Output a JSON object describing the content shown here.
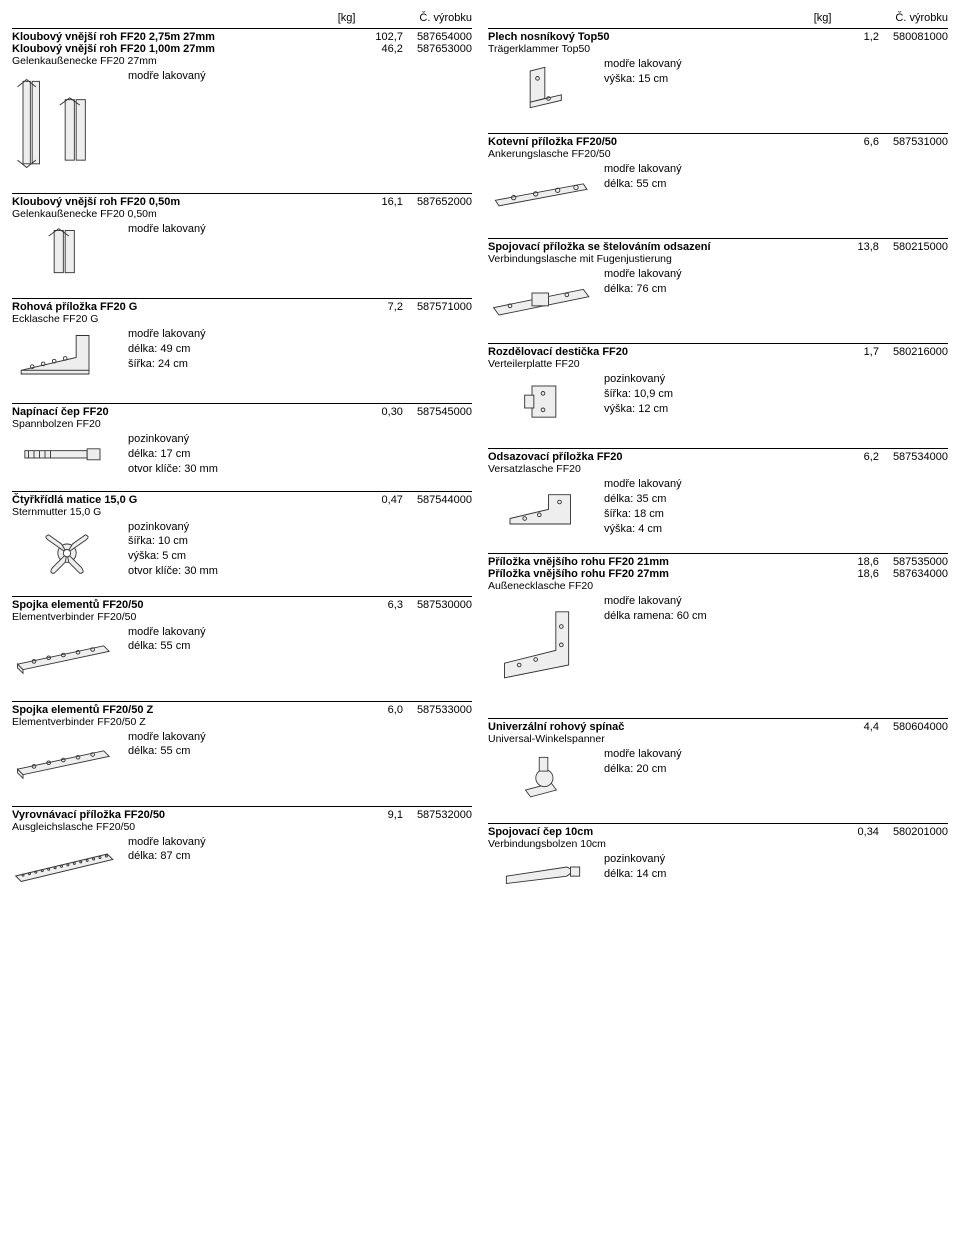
{
  "header": {
    "kg_label": "[kg]",
    "code_label": "Č. výrobku"
  },
  "left": [
    {
      "titles": [
        {
          "name": "Kloubový vnější roh FF20 2,75m 27mm",
          "kg": "102,7",
          "code": "587654000"
        },
        {
          "name": "Kloubový vnější roh FF20 1,00m 27mm",
          "kg": "46,2",
          "code": "587653000"
        }
      ],
      "subname": "Gelenkaußenecke FF20 27mm",
      "thumb": "corners",
      "thumb_tall": true,
      "specs": [
        "modře lakovaný"
      ]
    },
    {
      "titles": [
        {
          "name": "Kloubový vnější roh FF20 0,50m",
          "kg": "16,1",
          "code": "587652000"
        }
      ],
      "subname": "Gelenkaußenecke FF20 0,50m",
      "thumb": "corner-small",
      "specs": [
        "modře lakovaný"
      ]
    },
    {
      "titles": [
        {
          "name": "Rohová příložka FF20 G",
          "kg": "7,2",
          "code": "587571000"
        }
      ],
      "subname": "Ecklasche FF20 G",
      "thumb": "l-plate",
      "specs": [
        "modře lakovaný",
        "délka: 49 cm",
        "šířka: 24 cm"
      ]
    },
    {
      "titles": [
        {
          "name": "Napínací čep FF20",
          "kg": "0,30",
          "code": "587545000"
        }
      ],
      "subname": "Spannbolzen FF20",
      "thumb": "bolt",
      "thumb_short": true,
      "specs": [
        "pozinkovaný",
        "délka: 17 cm",
        "otvor klíče: 30 mm"
      ]
    },
    {
      "titles": [
        {
          "name": "Čtyřkřídlá matice 15,0 G",
          "kg": "0,47",
          "code": "587544000"
        }
      ],
      "subname": "Sternmutter 15,0 G",
      "thumb": "wingnut",
      "specs": [
        "pozinkovaný",
        "šířka: 10 cm",
        "výška: 5 cm",
        "otvor klíče: 30 mm"
      ]
    },
    {
      "titles": [
        {
          "name": "Spojka elementů FF20/50",
          "kg": "6,3",
          "code": "587530000"
        }
      ],
      "subname": "Elementverbinder FF20/50",
      "thumb": "long-plate",
      "specs": [
        "modře lakovaný",
        "délka: 55 cm"
      ]
    },
    {
      "titles": [
        {
          "name": "Spojka elementů FF20/50 Z",
          "kg": "6,0",
          "code": "587533000"
        }
      ],
      "subname": "Elementverbinder FF20/50 Z",
      "thumb": "long-plate",
      "specs": [
        "modře lakovaný",
        "délka: 55 cm"
      ]
    },
    {
      "titles": [
        {
          "name": "Vyrovnávací příložka FF20/50",
          "kg": "9,1",
          "code": "587532000"
        }
      ],
      "subname": "Ausgleichslasche FF20/50",
      "thumb": "long-plate-dots",
      "specs": [
        "modře lakovaný",
        "délka: 87 cm"
      ]
    }
  ],
  "right": [
    {
      "titles": [
        {
          "name": "Plech nosníkový Top50",
          "kg": "1,2",
          "code": "580081000"
        }
      ],
      "subname": "Trägerklammer Top50",
      "thumb": "bracket",
      "specs": [
        "modře lakovaný",
        "výška: 15 cm"
      ]
    },
    {
      "titles": [
        {
          "name": "Kotevní příložka FF20/50",
          "kg": "6,6",
          "code": "587531000"
        }
      ],
      "subname": "Ankerungslasche FF20/50",
      "thumb": "anchor-plate",
      "specs": [
        "modře lakovaný",
        "délka: 55 cm"
      ]
    },
    {
      "titles": [
        {
          "name": "Spojovací příložka se štelováním odsazení",
          "kg": "13,8",
          "code": "580215000"
        }
      ],
      "subname": "Verbindungslasche mit Fugenjustierung",
      "thumb": "adj-plate",
      "specs": [
        "modře lakovaný",
        "délka: 76 cm"
      ]
    },
    {
      "titles": [
        {
          "name": "Rozdělovací destička FF20",
          "kg": "1,7",
          "code": "580216000"
        }
      ],
      "subname": "Verteilerplatte FF20",
      "thumb": "dist-plate",
      "specs": [
        "pozinkovaný",
        "šířka: 10,9 cm",
        "výška: 12 cm"
      ]
    },
    {
      "titles": [
        {
          "name": "Odsazovací příložka FF20",
          "kg": "6,2",
          "code": "587534000"
        }
      ],
      "subname": "Versatzlasche FF20",
      "thumb": "offset-plate",
      "specs": [
        "modře lakovaný",
        "délka: 35 cm",
        "šířka: 18 cm",
        "výška: 4 cm"
      ]
    },
    {
      "titles": [
        {
          "name": "Příložka vnějšího rohu FF20 21mm",
          "kg": "18,6",
          "code": "587535000"
        },
        {
          "name": "Příložka vnějšího rohu FF20 27mm",
          "kg": "18,6",
          "code": "587634000"
        }
      ],
      "subname": "Außenecklasche FF20",
      "thumb": "corner-plate",
      "thumb_tall": true,
      "specs": [
        "modře lakovaný",
        "délka ramena: 60 cm"
      ]
    },
    {
      "titles": [
        {
          "name": "Univerzální rohový spínač",
          "kg": "4,4",
          "code": "580604000"
        }
      ],
      "subname": "Universal-Winkelspanner",
      "thumb": "clamp",
      "specs": [
        "modře lakovaný",
        "délka: 20 cm"
      ]
    },
    {
      "titles": [
        {
          "name": "Spojovací čep 10cm",
          "kg": "0,34",
          "code": "580201000"
        }
      ],
      "subname": "Verbindungsbolzen 10cm",
      "thumb": "pin",
      "thumb_short": true,
      "specs": [
        "pozinkovaný",
        "délka: 14 cm"
      ]
    }
  ]
}
